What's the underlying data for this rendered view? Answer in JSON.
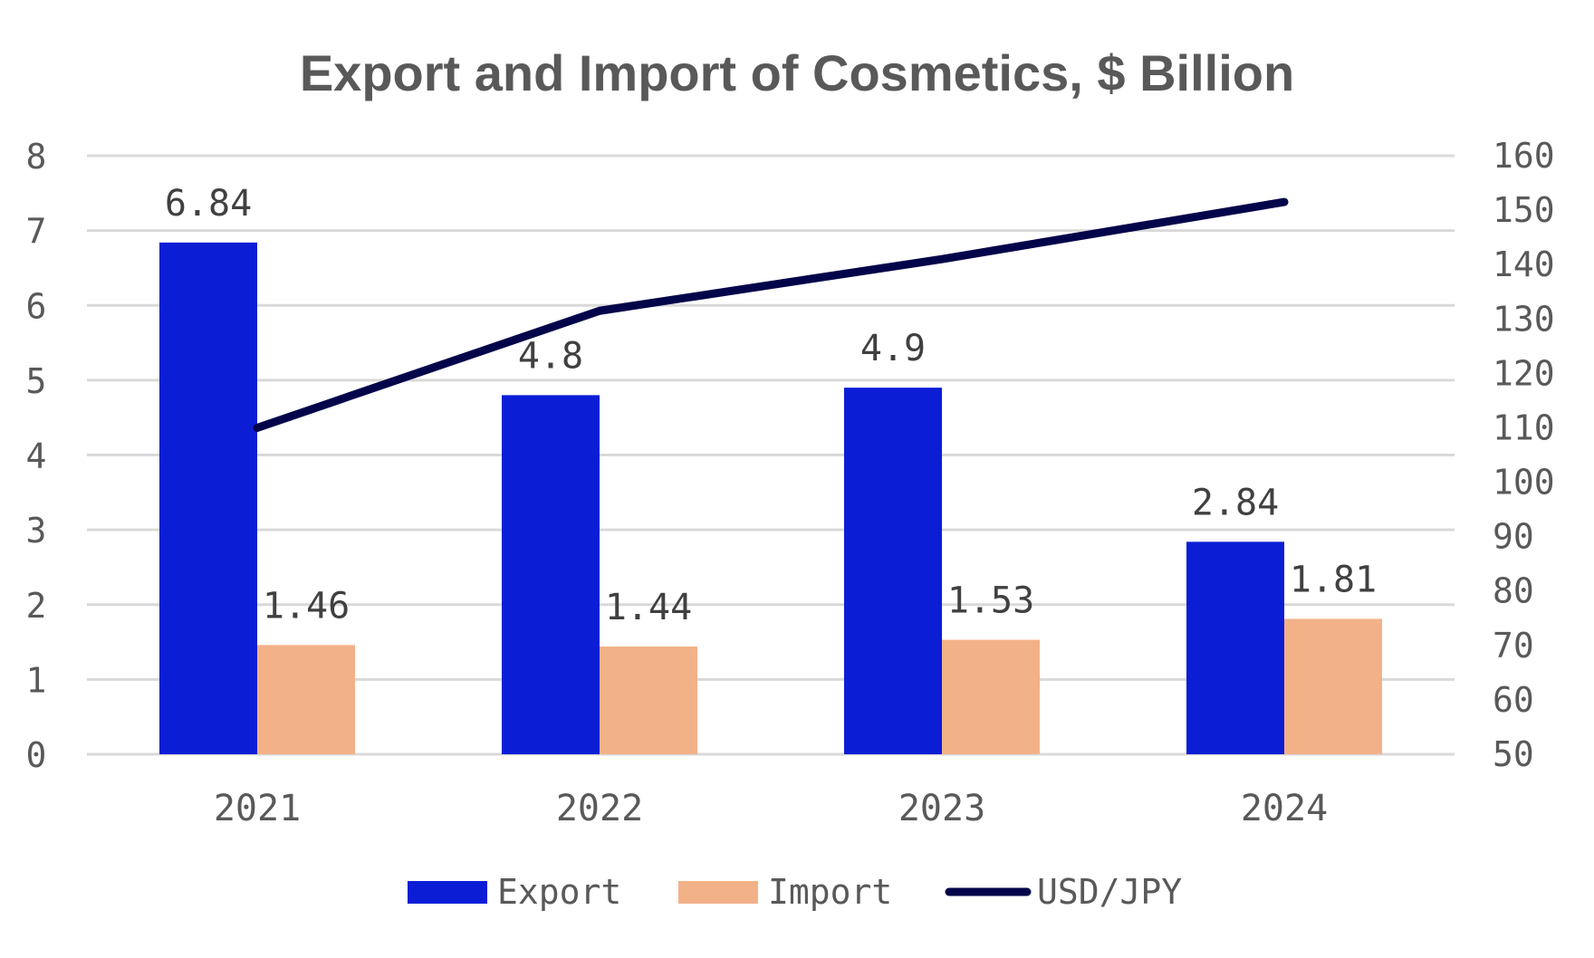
{
  "chart_data": {
    "type": "bar",
    "title": "Export and Import of Cosmetics, $ Billion",
    "categories": [
      "2021",
      "2022",
      "2023",
      "2024"
    ],
    "series": [
      {
        "name": "Export",
        "type": "bar",
        "axis": "left",
        "color": "#0b1ed6",
        "values": [
          6.84,
          4.8,
          4.9,
          2.84
        ],
        "labels": [
          "6.84",
          "4.8",
          "4.9",
          "2.84"
        ]
      },
      {
        "name": "Import",
        "type": "bar",
        "axis": "left",
        "color": "#f3b188",
        "values": [
          1.46,
          1.44,
          1.53,
          1.81
        ],
        "labels": [
          "1.46",
          "1.44",
          "1.53",
          "1.81"
        ]
      },
      {
        "name": "USD/JPY",
        "type": "line",
        "axis": "right",
        "color": "#03054a",
        "values": [
          110,
          131.5,
          141,
          151.5
        ]
      }
    ],
    "y_left": {
      "min": 0,
      "max": 8,
      "step": 1,
      "ticks": [
        "0",
        "1",
        "2",
        "3",
        "4",
        "5",
        "6",
        "7",
        "8"
      ]
    },
    "y_right": {
      "min": 50,
      "max": 160,
      "step": 10,
      "ticks": [
        "50",
        "60",
        "70",
        "80",
        "90",
        "100",
        "110",
        "120",
        "130",
        "140",
        "150",
        "160"
      ]
    },
    "xlabel": "",
    "ylabel": "",
    "grid": true,
    "legend": {
      "position": "bottom",
      "entries": [
        "Export",
        "Import",
        "USD/JPY"
      ]
    }
  }
}
